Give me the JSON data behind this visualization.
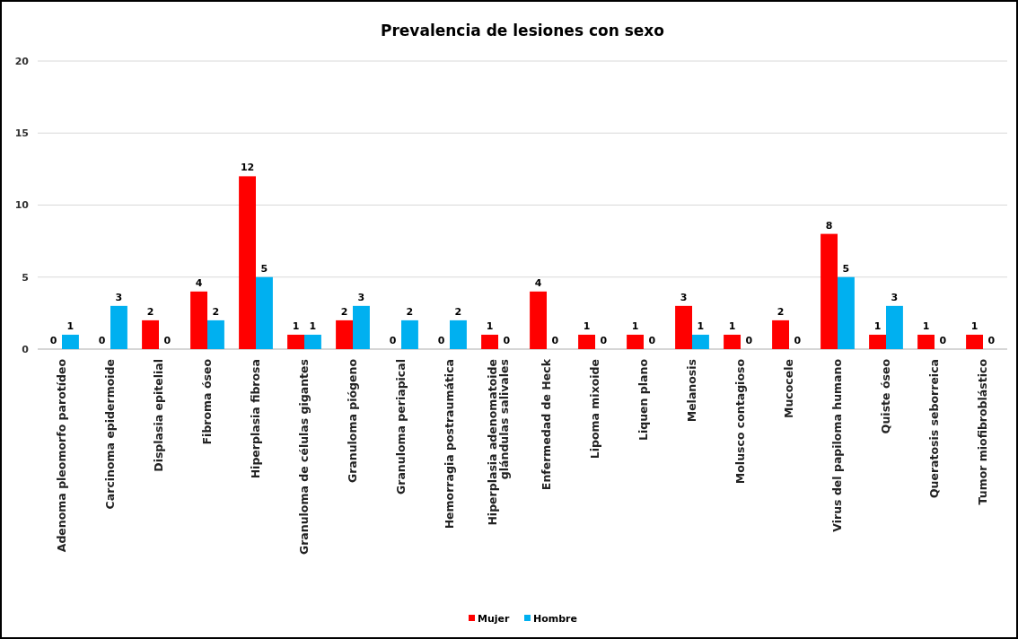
{
  "chart_data": {
    "type": "bar",
    "title": "Prevalencia de lesiones con sexo",
    "categories": [
      "Adenoma pleomorfo parotídeo",
      "Carcinoma epidermoide",
      "Displasia epitelial",
      "Fibroma óseo",
      "Hiperplasia fibrosa",
      "Granuloma de células gigantes",
      "Granuloma piógeno",
      "Granuloma periapical",
      "Hemorragia postraumática",
      "Hiperplasia adenomatoide glándulas salivales",
      "Enfermedad de Heck",
      "Lipoma mixoide",
      "Liquen plano",
      "Melanosis",
      "Molusco contagioso",
      "Mucocele",
      "Virus del papiloma humano",
      "Quiste óseo",
      "Queratosis seborreica",
      "Tumor miofibroblástico"
    ],
    "series": [
      {
        "name": "Mujer",
        "color": "#ff0000",
        "values": [
          0,
          0,
          2,
          4,
          12,
          1,
          2,
          0,
          0,
          1,
          4,
          1,
          1,
          3,
          1,
          2,
          8,
          1,
          1,
          1
        ]
      },
      {
        "name": "Hombre",
        "color": "#00b0f0",
        "values": [
          1,
          3,
          0,
          2,
          5,
          1,
          3,
          2,
          2,
          0,
          0,
          0,
          0,
          1,
          0,
          0,
          5,
          3,
          0,
          0
        ]
      }
    ],
    "ylim": [
      0,
      20
    ],
    "yticks": [
      0,
      5,
      10,
      15,
      20
    ],
    "grid": "y",
    "legend": "bottom",
    "data_labels": true
  }
}
